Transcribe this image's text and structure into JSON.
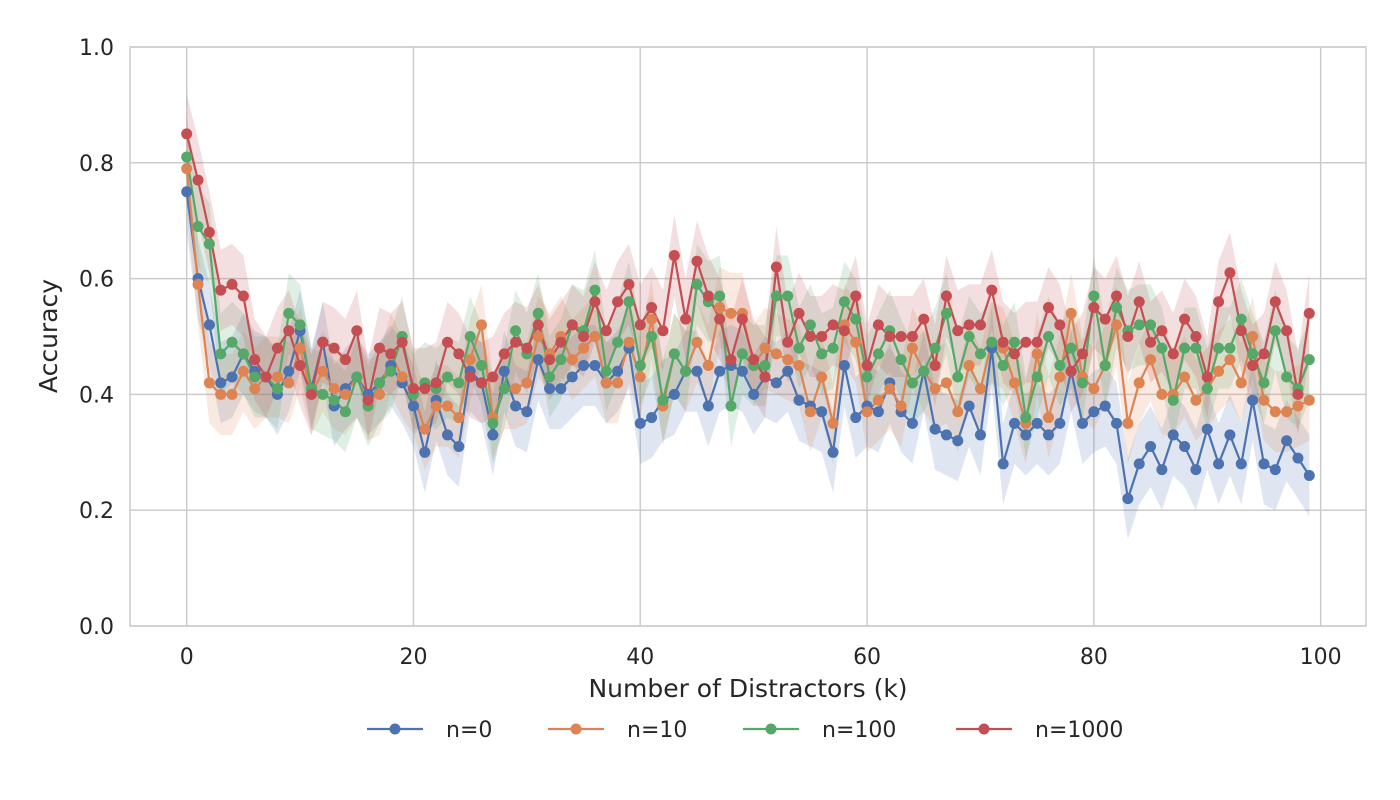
{
  "chart_data": {
    "type": "line",
    "title": "",
    "xlabel": "Number of Distractors (k)",
    "ylabel": "Accuracy",
    "xlim": [
      -5,
      104
    ],
    "ylim": [
      0,
      1
    ],
    "xticks": [
      0,
      20,
      40,
      60,
      80,
      100
    ],
    "yticks": [
      0.0,
      0.2,
      0.4,
      0.6,
      0.8,
      1.0
    ],
    "xtick_labels": [
      "0",
      "20",
      "40",
      "60",
      "80",
      "100"
    ],
    "ytick_labels": [
      "0.0",
      "0.2",
      "0.4",
      "0.6",
      "0.8",
      "1.0"
    ],
    "grid": true,
    "legend_position": "bottom-center",
    "band_width": 0.07,
    "series": [
      {
        "name": "n=0",
        "color": "#4c72b0",
        "values": [
          0.75,
          0.6,
          0.52,
          0.42,
          0.43,
          0.47,
          0.44,
          0.43,
          0.4,
          0.44,
          0.51,
          0.41,
          0.49,
          0.38,
          0.41,
          0.43,
          0.4,
          0.42,
          0.45,
          0.42,
          0.38,
          0.3,
          0.39,
          0.33,
          0.31,
          0.44,
          0.42,
          0.33,
          0.44,
          0.38,
          0.37,
          0.46,
          0.41,
          0.41,
          0.43,
          0.45,
          0.45,
          0.42,
          0.44,
          0.48,
          0.35,
          0.36,
          0.39,
          0.4,
          0.44,
          0.44,
          0.38,
          0.44,
          0.45,
          0.44,
          0.4,
          0.43,
          0.42,
          0.44,
          0.39,
          0.38,
          0.37,
          0.3,
          0.45,
          0.36,
          0.38,
          0.37,
          0.42,
          0.37,
          0.35,
          0.44,
          0.34,
          0.33,
          0.32,
          0.38,
          0.33,
          0.48,
          0.28,
          0.35,
          0.33,
          0.35,
          0.33,
          0.35,
          0.44,
          0.35,
          0.37,
          0.38,
          0.35,
          0.22,
          0.28,
          0.31,
          0.27,
          0.33,
          0.31,
          0.27,
          0.34,
          0.28,
          0.33,
          0.28,
          0.39,
          0.28,
          0.27,
          0.32,
          0.29,
          0.26
        ]
      },
      {
        "name": "n=10",
        "color": "#dd8452",
        "values": [
          0.79,
          0.59,
          0.42,
          0.4,
          0.4,
          0.44,
          0.41,
          0.43,
          0.43,
          0.42,
          0.48,
          0.4,
          0.44,
          0.41,
          0.4,
          0.43,
          0.39,
          0.4,
          0.47,
          0.43,
          0.4,
          0.34,
          0.38,
          0.38,
          0.36,
          0.46,
          0.52,
          0.36,
          0.41,
          0.41,
          0.42,
          0.5,
          0.47,
          0.5,
          0.46,
          0.48,
          0.5,
          0.42,
          0.42,
          0.49,
          0.43,
          0.53,
          0.38,
          0.47,
          0.44,
          0.49,
          0.45,
          0.55,
          0.54,
          0.54,
          0.45,
          0.48,
          0.47,
          0.46,
          0.45,
          0.37,
          0.43,
          0.35,
          0.52,
          0.49,
          0.37,
          0.39,
          0.41,
          0.38,
          0.48,
          0.44,
          0.41,
          0.42,
          0.37,
          0.45,
          0.41,
          0.49,
          0.48,
          0.42,
          0.35,
          0.47,
          0.36,
          0.43,
          0.54,
          0.43,
          0.41,
          0.45,
          0.52,
          0.35,
          0.42,
          0.46,
          0.4,
          0.4,
          0.43,
          0.39,
          0.41,
          0.44,
          0.46,
          0.42,
          0.5,
          0.39,
          0.37,
          0.37,
          0.38,
          0.39
        ]
      },
      {
        "name": "n=100",
        "color": "#55a868",
        "values": [
          0.81,
          0.69,
          0.66,
          0.47,
          0.49,
          0.47,
          0.43,
          0.43,
          0.41,
          0.54,
          0.52,
          0.41,
          0.4,
          0.39,
          0.37,
          0.43,
          0.38,
          0.42,
          0.44,
          0.5,
          0.4,
          0.42,
          0.41,
          0.43,
          0.42,
          0.5,
          0.45,
          0.35,
          0.41,
          0.51,
          0.47,
          0.54,
          0.43,
          0.46,
          0.52,
          0.51,
          0.58,
          0.44,
          0.49,
          0.56,
          0.45,
          0.5,
          0.39,
          0.47,
          0.44,
          0.59,
          0.56,
          0.57,
          0.38,
          0.47,
          0.45,
          0.45,
          0.57,
          0.57,
          0.48,
          0.52,
          0.47,
          0.48,
          0.56,
          0.53,
          0.43,
          0.47,
          0.51,
          0.46,
          0.42,
          0.44,
          0.48,
          0.54,
          0.43,
          0.5,
          0.47,
          0.49,
          0.45,
          0.49,
          0.36,
          0.43,
          0.5,
          0.45,
          0.48,
          0.42,
          0.57,
          0.45,
          0.55,
          0.51,
          0.52,
          0.52,
          0.48,
          0.39,
          0.48,
          0.48,
          0.41,
          0.48,
          0.48,
          0.53,
          0.47,
          0.42,
          0.51,
          0.43,
          0.41,
          0.46
        ]
      },
      {
        "name": "n=1000",
        "color": "#c44e52",
        "values": [
          0.85,
          0.77,
          0.68,
          0.58,
          0.59,
          0.57,
          0.46,
          0.43,
          0.48,
          0.51,
          0.45,
          0.4,
          0.49,
          0.48,
          0.46,
          0.51,
          0.39,
          0.48,
          0.47,
          0.49,
          0.41,
          0.41,
          0.42,
          0.49,
          0.47,
          0.43,
          0.42,
          0.43,
          0.47,
          0.49,
          0.48,
          0.52,
          0.46,
          0.49,
          0.52,
          0.5,
          0.56,
          0.51,
          0.56,
          0.59,
          0.52,
          0.55,
          0.51,
          0.64,
          0.53,
          0.63,
          0.57,
          0.53,
          0.46,
          0.53,
          0.46,
          0.43,
          0.62,
          0.49,
          0.54,
          0.5,
          0.5,
          0.52,
          0.51,
          0.57,
          0.45,
          0.52,
          0.5,
          0.5,
          0.5,
          0.53,
          0.45,
          0.57,
          0.51,
          0.52,
          0.52,
          0.58,
          0.49,
          0.47,
          0.49,
          0.49,
          0.55,
          0.52,
          0.44,
          0.47,
          0.55,
          0.53,
          0.57,
          0.5,
          0.56,
          0.49,
          0.51,
          0.47,
          0.53,
          0.5,
          0.43,
          0.56,
          0.61,
          0.51,
          0.45,
          0.47,
          0.56,
          0.51,
          0.4,
          0.54
        ]
      }
    ]
  }
}
